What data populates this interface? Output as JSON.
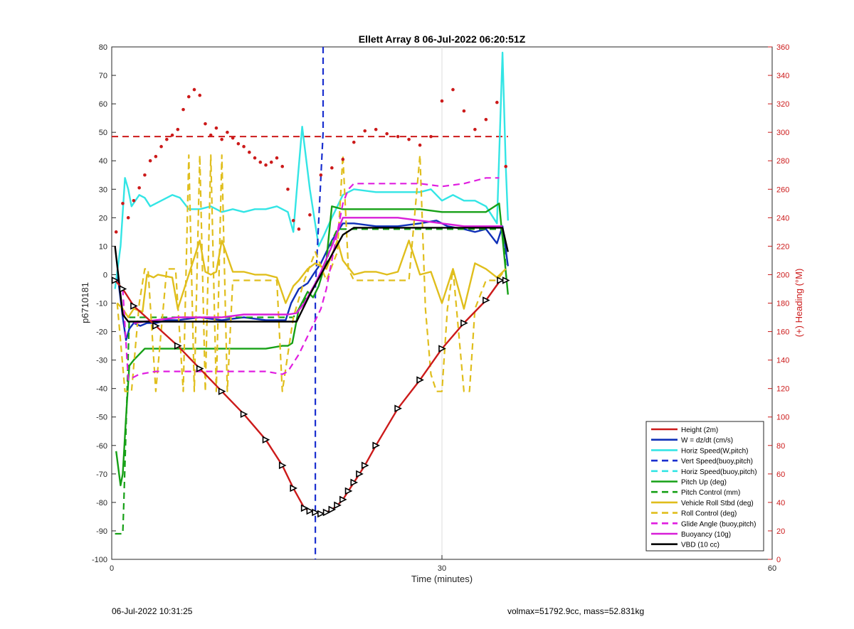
{
  "chart_data": {
    "type": "line",
    "title": "Ellett Array 8 06-Jul-2022 06:20:51Z",
    "xlabel": "Time (minutes)",
    "ylabel": "p6710181",
    "y2label": "(+) Heading (°M)",
    "xlim": [
      0,
      60
    ],
    "ylim": [
      -100,
      80
    ],
    "y2lim": [
      0,
      360
    ],
    "xticks": [
      "0",
      "30",
      "60"
    ],
    "yticks": [
      "80",
      "70",
      "60",
      "50",
      "40",
      "30",
      "20",
      "10",
      "0",
      "-10",
      "-20",
      "-30",
      "-40",
      "-50",
      "-60",
      "-70",
      "-80",
      "-90",
      "-100"
    ],
    "y2ticks": [
      "360",
      "340",
      "320",
      "300",
      "280",
      "260",
      "240",
      "220",
      "200",
      "180",
      "160",
      "140",
      "120",
      "100",
      "80",
      "60",
      "40",
      "20",
      "0"
    ],
    "grid": "x-only",
    "legend_position": "bottom-right",
    "series": [
      {
        "name": "Height (2m)",
        "color": "#cc1a1a",
        "style": "solid",
        "x": [
          0.3,
          1.0,
          2.0,
          4.0,
          6.0,
          8.0,
          10.0,
          12.0,
          14.0,
          15.5,
          16.5,
          17.5,
          18.0,
          18.5,
          19.0,
          19.5,
          20.0,
          20.5,
          21.0,
          21.5,
          22.0,
          22.5,
          23.0,
          24.0,
          26.0,
          28.0,
          30.0,
          32.0,
          34.0,
          35.3,
          35.8
        ],
        "y": [
          -2,
          -5,
          -11,
          -18,
          -25,
          -33,
          -41,
          -49,
          -58,
          -67,
          -75,
          -82,
          -83,
          -83.5,
          -84,
          -83.5,
          -82.5,
          -81,
          -79,
          -76,
          -73,
          -70,
          -67,
          -60,
          -47,
          -37,
          -26,
          -17,
          -9,
          -2,
          -2
        ]
      },
      {
        "name": "W = dz/dt (cm/s)",
        "color": "#1030b8",
        "style": "solid",
        "x": [
          0.5,
          1.0,
          1.3,
          1.6,
          2.0,
          2.6,
          3.2,
          4.0,
          5.0,
          6.0,
          8.0,
          10.0,
          12.0,
          14.0,
          15.8,
          16.3,
          17.0,
          17.8,
          18.3,
          19.0,
          20.0,
          21.0,
          22.0,
          24.0,
          26.0,
          28.0,
          29.5,
          30.5,
          32.0,
          33.0,
          34.0,
          35.0,
          35.5,
          36.0
        ],
        "y": [
          1,
          -15,
          -23,
          -19,
          -17,
          -18,
          -17,
          -17,
          -16,
          -16,
          -15,
          -16,
          -15,
          -16,
          -16,
          -10,
          -5,
          -3,
          0,
          4,
          12,
          18,
          18,
          17,
          17,
          18,
          19,
          17,
          16,
          15,
          16,
          11,
          17,
          3
        ]
      },
      {
        "name": "Horiz Speed(W,pitch)",
        "color": "#33e5e5",
        "style": "solid",
        "x": [
          0.3,
          0.8,
          1.2,
          1.5,
          1.8,
          2.5,
          3.0,
          3.5,
          4.5,
          5.5,
          6.2,
          7.0,
          8.0,
          9.0,
          10.0,
          11.0,
          12.0,
          13.0,
          14.0,
          15.0,
          16.0,
          16.5,
          16.8,
          17.3,
          18.0,
          18.8,
          19.3,
          20.0,
          21.0,
          22.0,
          24.0,
          26.0,
          28.0,
          29.0,
          30.0,
          31.0,
          32.0,
          33.0,
          34.0,
          35.0,
          35.5,
          35.8,
          36.0
        ],
        "y": [
          -5,
          10,
          34,
          30,
          24,
          28,
          27,
          24,
          26,
          28,
          27,
          23,
          23,
          24,
          22,
          23,
          22,
          23,
          23,
          24,
          22,
          15,
          29,
          52,
          30,
          10,
          14,
          20,
          28,
          30,
          29,
          29,
          29,
          30,
          26,
          28,
          26,
          26,
          24,
          18,
          78,
          38,
          19
        ]
      },
      {
        "name": "Vert Speed(buoy,pitch)",
        "color": "#1a2fcf",
        "style": "dashed",
        "x": [
          19.2,
          19.2,
          18.5,
          18.5
        ],
        "y": [
          80,
          50,
          -5,
          -100
        ]
      },
      {
        "name": "Horiz Speed(buoy,pitch)",
        "color": "#33e5e5",
        "style": "dashed",
        "x": [],
        "y": []
      },
      {
        "name": "Pitch Up (deg)",
        "color": "#16a016",
        "style": "solid",
        "x": [
          0.4,
          0.8,
          1.0,
          1.3,
          1.6,
          2.0,
          3.0,
          4.0,
          6.0,
          8.0,
          10.0,
          12.0,
          14.0,
          15.5,
          16.0,
          16.4,
          17.0,
          17.8,
          18.3,
          18.8,
          19.5,
          20.0,
          21.0,
          22.0,
          24.0,
          26.0,
          28.0,
          30.0,
          32.0,
          34.0,
          35.2,
          35.7,
          36.0
        ],
        "y": [
          -62,
          -74,
          -70,
          -50,
          -32,
          -30,
          -26,
          -26,
          -26,
          -26,
          -26,
          -26,
          -26,
          -25,
          -25,
          -24,
          -12,
          -6,
          -8,
          -4,
          5,
          24,
          23,
          23,
          23,
          23,
          23,
          22,
          22,
          22,
          25,
          5,
          -7
        ]
      },
      {
        "name": "Pitch Control (mm)",
        "color": "#16a016",
        "style": "dashed",
        "x": [
          0.3,
          1.0,
          1.1,
          1.6,
          2.0,
          4.0,
          6.0,
          8.0,
          10.0,
          12.0,
          14.0,
          15.5,
          16.5,
          17.5,
          18.3,
          19.5,
          20.0,
          20.5,
          35.5,
          35.8
        ],
        "y": [
          -91,
          -91,
          -80,
          -15,
          -15,
          -15,
          -15,
          -15,
          -15,
          -15,
          -15,
          -15,
          -15,
          -9,
          -5,
          4,
          12,
          16,
          16,
          3
        ]
      },
      {
        "name": "Vehicle Roll Stbd (deg)",
        "color": "#e0be1c",
        "style": "solid",
        "x": [
          0.5,
          1.0,
          1.5,
          2.0,
          2.8,
          3.2,
          3.8,
          4.2,
          5.5,
          6.0,
          7.0,
          8.0,
          8.5,
          9.0,
          9.5,
          10.0,
          11.0,
          12.0,
          13.0,
          14.0,
          15.0,
          15.8,
          16.5,
          17.0,
          17.8,
          18.5,
          19.5,
          20.5,
          21.0,
          22.0,
          23.0,
          24.0,
          25.0,
          26.0,
          27.0,
          28.0,
          29.0,
          30.0,
          31.0,
          32.0,
          33.0,
          34.0,
          35.0,
          35.8
        ],
        "y": [
          -10,
          -12,
          -15,
          -12,
          -13,
          0,
          -1,
          0,
          -1,
          -12,
          0,
          12,
          1,
          0,
          1,
          12,
          1,
          1,
          0,
          0,
          -1,
          -10,
          -4,
          -2,
          2,
          4,
          2,
          12,
          5,
          0,
          1,
          1,
          0,
          1,
          12,
          0,
          1,
          -10,
          2,
          -12,
          4,
          2,
          -1,
          2
        ]
      },
      {
        "name": "Roll Control (deg)",
        "color": "#e0be1c",
        "style": "dashed",
        "x": [
          0.5,
          1.2,
          1.8,
          2.5,
          3.0,
          3.3,
          4.0,
          5.0,
          5.8,
          6.5,
          7.0,
          7.5,
          8.0,
          8.5,
          9.0,
          9.5,
          10.0,
          10.5,
          11.0,
          12.0,
          13.0,
          14.0,
          15.0,
          15.5,
          16.5,
          17.5,
          18.5,
          19.5,
          20.5,
          21.0,
          21.5,
          22.0,
          22.5,
          23.0,
          24.0,
          25.0,
          26.0,
          27.0,
          28.0,
          28.5,
          29.0,
          29.5,
          30.0,
          30.5,
          31.0,
          32.0,
          32.5,
          33.0,
          34.0,
          35.0,
          35.8
        ],
        "y": [
          -10,
          -41,
          -41,
          -10,
          2,
          2,
          -41,
          2,
          2,
          -41,
          42,
          -41,
          42,
          -41,
          42,
          -41,
          42,
          -41,
          -2,
          -2,
          -2,
          -2,
          -2,
          -41,
          -15,
          -2,
          8,
          -2,
          8,
          42,
          2,
          -2,
          -2,
          -2,
          -2,
          -2,
          -2,
          -2,
          42,
          -12,
          -35,
          -41,
          -41,
          -12,
          2,
          -41,
          -41,
          -12,
          -2,
          -2,
          2
        ]
      },
      {
        "name": "Glide Angle (buoy,pitch)",
        "color": "#e01ee0",
        "style": "dashed",
        "x": [
          1.0,
          1.5,
          2.5,
          4.0,
          6.0,
          8.0,
          10.0,
          12.0,
          14.0,
          15.5,
          16.0,
          17.0,
          18.0,
          19.0,
          19.5,
          20.0,
          20.5,
          21.0,
          21.5,
          22.0,
          24.0,
          26.0,
          28.0,
          30.0,
          32.0,
          33.0,
          34.0,
          35.2
        ],
        "y": [
          -5,
          -37,
          -35,
          -34,
          -34,
          -34,
          -34,
          -34,
          -34,
          -35,
          -34,
          -28,
          -20,
          -12,
          -5,
          5,
          15,
          25,
          30,
          32,
          32,
          32,
          32,
          31,
          32,
          33,
          34,
          34
        ]
      },
      {
        "name": "Buoyancy (10g)",
        "color": "#d81ed8",
        "style": "solid",
        "x": [
          2.0,
          4.0,
          6.0,
          8.0,
          10.0,
          12.0,
          14.0,
          16.0,
          16.8,
          17.5,
          18.5,
          19.0,
          20.0,
          21.0,
          22.0,
          24.0,
          26.0,
          28.0,
          30.0,
          32.0,
          34.0,
          35.5
        ],
        "y": [
          -17,
          -16,
          -15,
          -15,
          -15,
          -14,
          -14,
          -14,
          -13.5,
          -10,
          -3,
          1,
          10,
          20,
          20,
          20,
          20,
          19,
          18,
          17,
          17,
          17
        ]
      },
      {
        "name": "VBD (10 cc)",
        "color": "#000000",
        "style": "solid",
        "x": [
          0.3,
          1.0,
          1.5,
          4.0,
          8.0,
          12.0,
          16.0,
          16.8,
          18.0,
          19.0,
          20.0,
          21.0,
          22.0,
          24.0,
          28.0,
          32.0,
          35.5,
          36.0
        ],
        "y": [
          10,
          -14,
          -16.5,
          -16.5,
          -16.5,
          -16.5,
          -16.5,
          -16.5,
          -7,
          0,
          7,
          14,
          16.5,
          16.5,
          16.5,
          16.5,
          16.5,
          8
        ]
      }
    ],
    "heading_dots": {
      "color": "#cc1a1a",
      "axis": "right",
      "x": [
        0.4,
        1.0,
        1.5,
        2.0,
        2.5,
        3.0,
        3.5,
        4.0,
        4.5,
        5.0,
        5.5,
        6.0,
        6.5,
        7.0,
        7.5,
        8.0,
        8.5,
        9.0,
        9.5,
        10.0,
        10.5,
        11.0,
        11.5,
        12.0,
        12.5,
        13.0,
        13.5,
        14.0,
        14.5,
        15.0,
        15.5,
        16.0,
        16.5,
        17.0,
        18.0,
        19.0,
        20.0,
        21.0,
        22.0,
        23.0,
        24.0,
        25.0,
        26.0,
        27.0,
        28.0,
        29.0,
        30.0,
        31.0,
        32.0,
        33.0,
        34.0,
        35.0,
        35.8
      ],
      "y": [
        230,
        250,
        240,
        252,
        261,
        270,
        280,
        283,
        290,
        295,
        298,
        302,
        316,
        325,
        330,
        326,
        306,
        298,
        303,
        295,
        300,
        296,
        292,
        290,
        286,
        282,
        279,
        277,
        279,
        282,
        276,
        260,
        238,
        232,
        242,
        270,
        275,
        281,
        293,
        301,
        302,
        299,
        297,
        295,
        291,
        297,
        322,
        330,
        315,
        302,
        309,
        321,
        276
      ]
    },
    "reference_lines": [
      {
        "axis": "right",
        "value": 297,
        "x": [
          0,
          36
        ],
        "color": "#cc1a1a",
        "style": "dashed"
      }
    ],
    "footer_left": "06-Jul-2022 10:31:25",
    "footer_right": "volmax=51792.9cc, mass=52.831kg"
  }
}
